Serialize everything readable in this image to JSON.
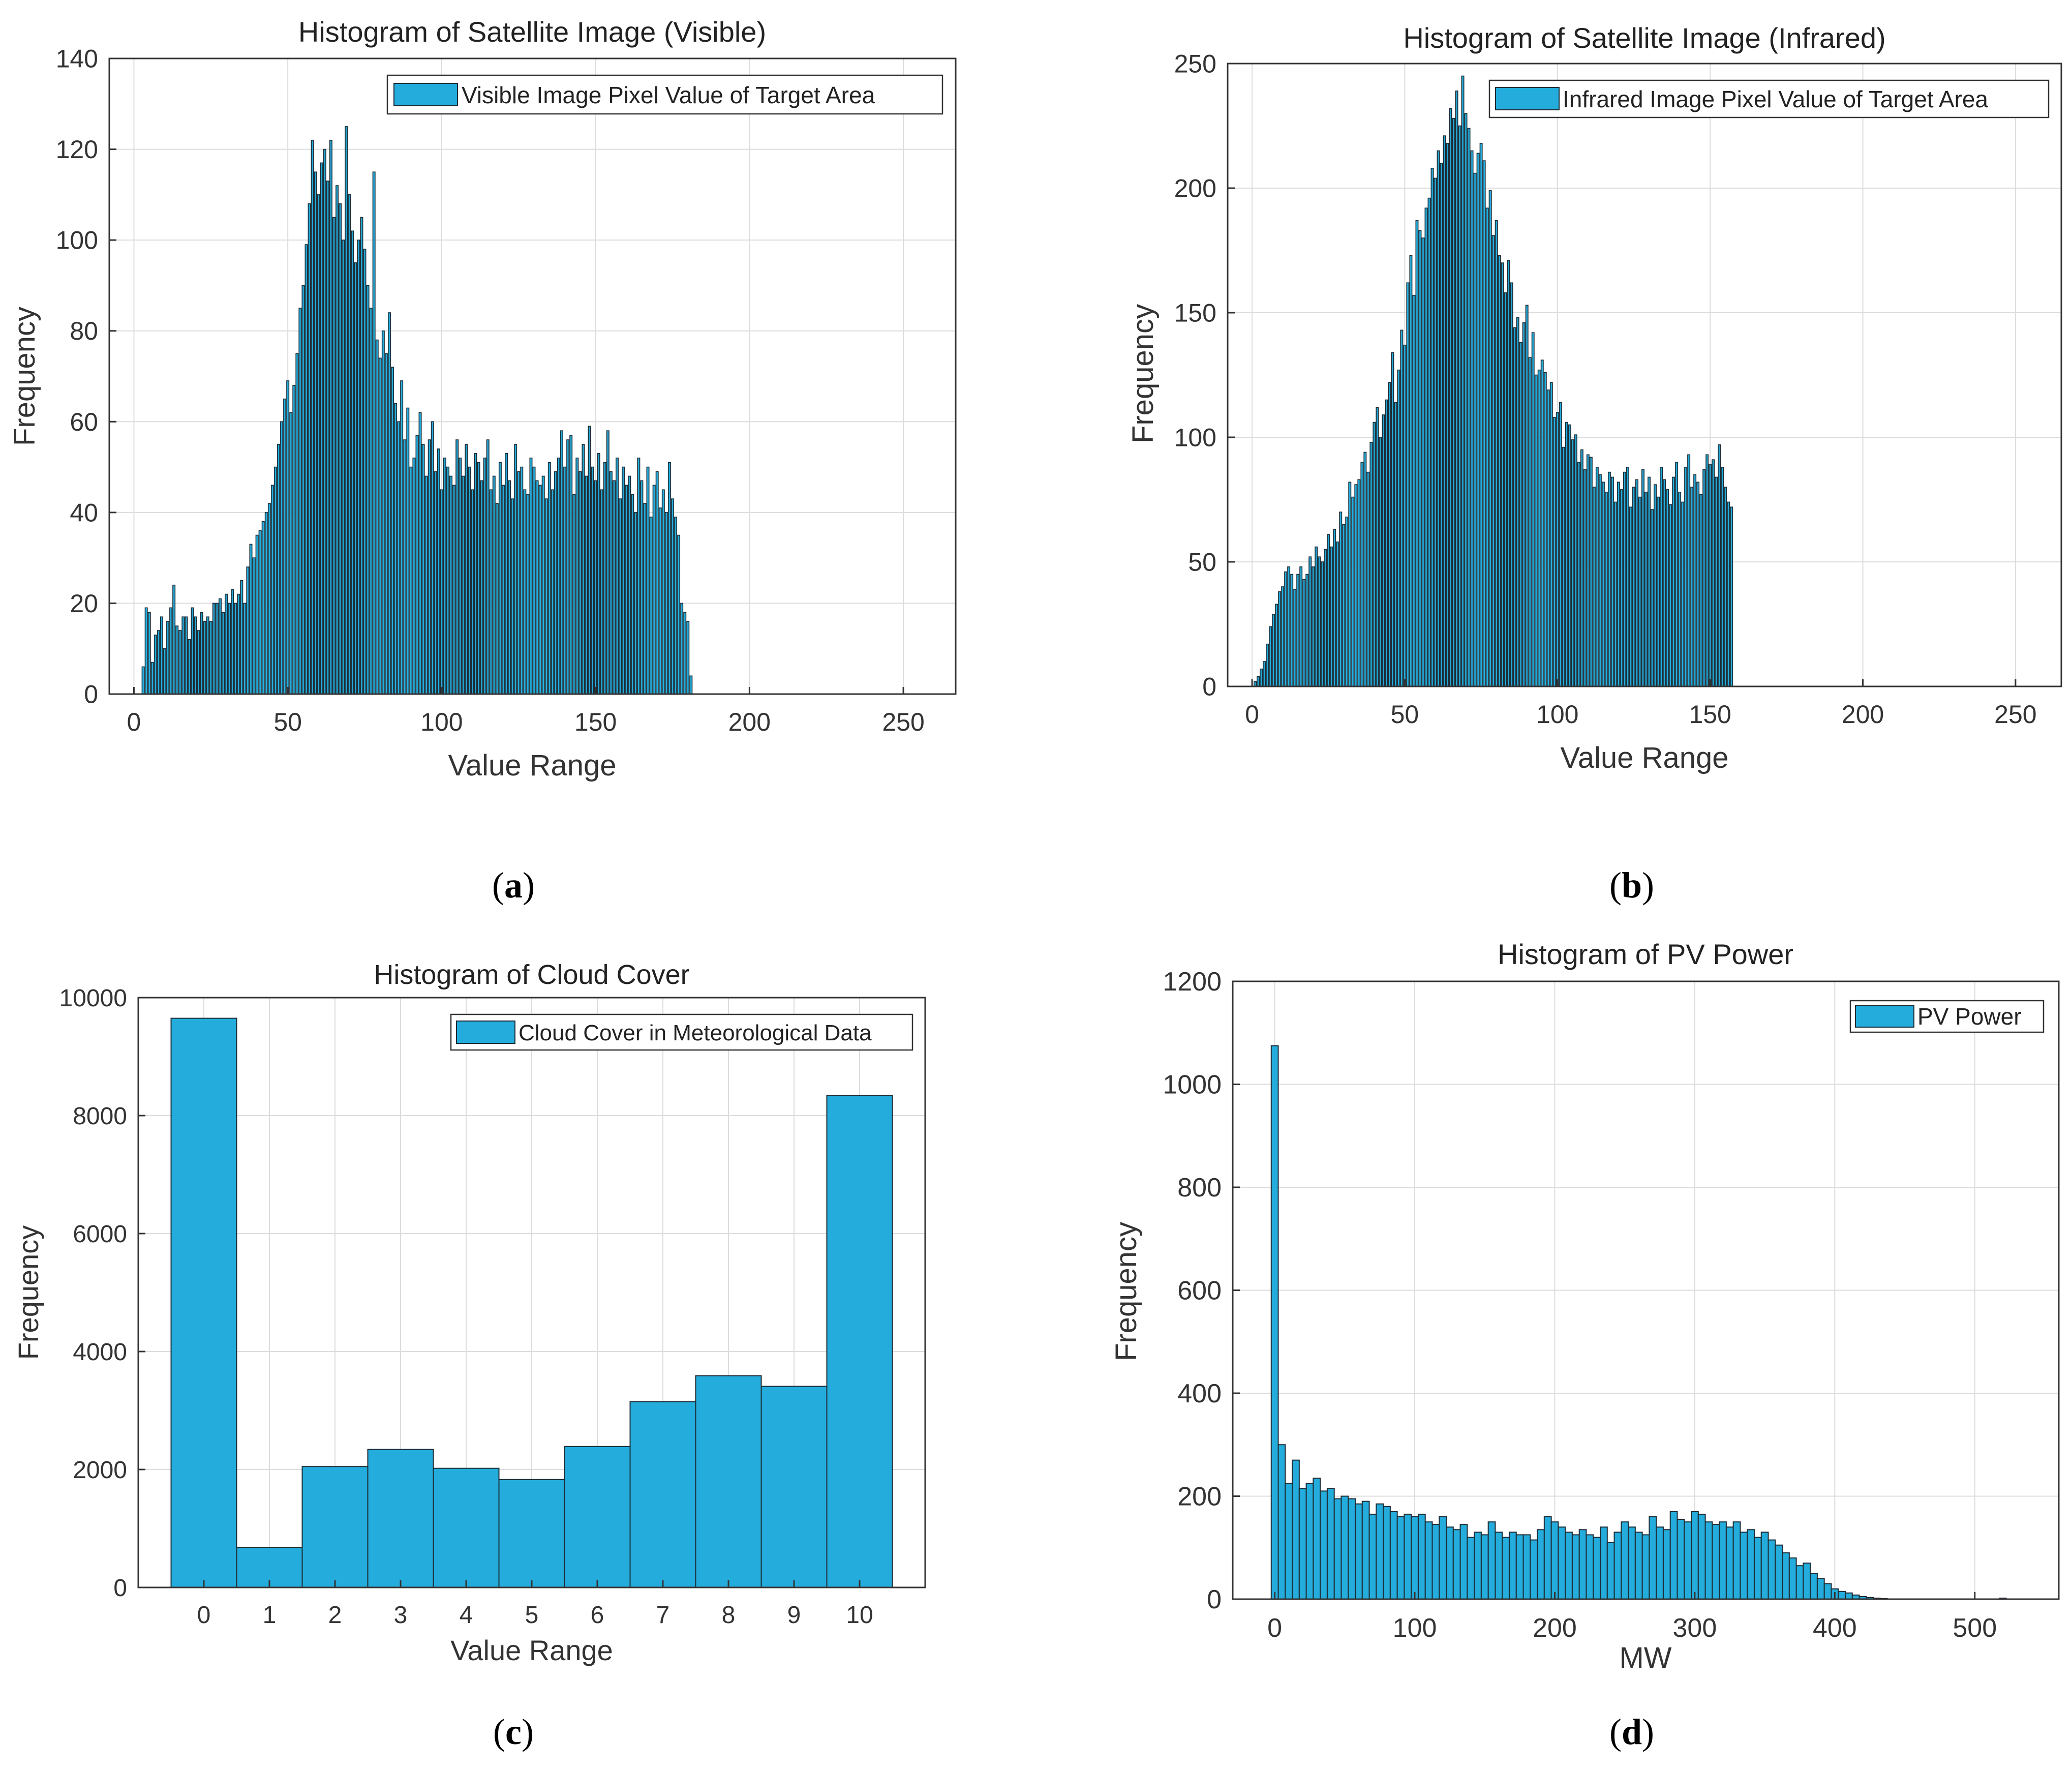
{
  "colors": {
    "bar": "#24ADDC",
    "edge": "#1d2a33",
    "grid": "#dcdcdc",
    "axis": "#333333",
    "text": "#333333"
  },
  "panels": {
    "a": {
      "label": "a"
    },
    "b": {
      "label": "b"
    },
    "c": {
      "label": "c"
    },
    "d": {
      "label": "d"
    }
  },
  "chart_data": [
    {
      "id": "a",
      "type": "bar",
      "title": "Histogram of Satellite Image (Visible)",
      "xlabel": "Value Range",
      "ylabel": "Frequency",
      "legend": "Visible Image Pixel Value of Target Area",
      "legend_position": "top-right",
      "xlim": [
        -8,
        267
      ],
      "ylim": [
        0,
        140
      ],
      "xticks": [
        0,
        50,
        100,
        150,
        200,
        250
      ],
      "yticks": [
        0,
        20,
        40,
        60,
        80,
        100,
        120,
        140
      ],
      "grid": true,
      "bin_width": 1,
      "x_start": 3,
      "values": [
        6,
        19,
        18,
        7,
        13,
        14,
        17,
        10,
        16,
        19,
        24,
        15,
        14,
        17,
        17,
        12,
        19,
        17,
        14,
        18,
        16,
        17,
        16,
        20,
        20,
        21,
        18,
        22,
        20,
        23,
        20,
        22,
        25,
        20,
        28,
        33,
        30,
        35,
        36,
        38,
        40,
        42,
        46,
        50,
        55,
        60,
        65,
        69,
        62,
        68,
        75,
        85,
        90,
        99,
        108,
        122,
        115,
        110,
        117,
        120,
        113,
        122,
        105,
        112,
        108,
        100,
        125,
        110,
        102,
        95,
        100,
        105,
        98,
        90,
        85,
        115,
        78,
        74,
        80,
        75,
        84,
        72,
        64,
        60,
        69,
        56,
        63,
        50,
        52,
        57,
        62,
        55,
        48,
        56,
        60,
        49,
        54,
        45,
        52,
        50,
        48,
        46,
        56,
        52,
        48,
        55,
        50,
        45,
        53,
        51,
        47,
        52,
        56,
        45,
        48,
        42,
        51,
        46,
        53,
        47,
        43,
        55,
        49,
        50,
        45,
        44,
        52,
        50,
        47,
        46,
        48,
        43,
        51,
        45,
        49,
        52,
        58,
        50,
        56,
        57,
        44,
        52,
        49,
        55,
        48,
        59,
        50,
        47,
        53,
        45,
        51,
        58,
        49,
        47,
        52,
        43,
        50,
        46,
        48,
        44,
        40,
        52,
        47,
        42,
        50,
        39,
        46,
        49,
        41,
        45,
        40,
        51,
        43,
        39,
        35,
        20,
        18,
        16,
        4
      ]
    },
    {
      "id": "b",
      "type": "bar",
      "title": "Histogram of Satellite Image (Infrared)",
      "xlabel": "Value Range",
      "ylabel": "Frequency",
      "legend": "Infrared Image Pixel Value of Target Area",
      "legend_position": "top-right",
      "xlim": [
        -8,
        265
      ],
      "ylim": [
        0,
        250
      ],
      "xticks": [
        0,
        50,
        100,
        150,
        200,
        250
      ],
      "yticks": [
        0,
        50,
        100,
        150,
        200,
        250
      ],
      "grid": true,
      "bin_width": 1,
      "x_start": 1,
      "values": [
        2,
        4,
        7,
        10,
        17,
        24,
        29,
        33,
        38,
        40,
        46,
        48,
        45,
        39,
        45,
        48,
        43,
        45,
        52,
        48,
        56,
        52,
        50,
        55,
        61,
        56,
        63,
        58,
        70,
        65,
        68,
        82,
        76,
        81,
        83,
        90,
        94,
        86,
        98,
        106,
        112,
        100,
        109,
        115,
        122,
        134,
        114,
        127,
        143,
        137,
        162,
        173,
        157,
        187,
        183,
        180,
        192,
        196,
        208,
        204,
        215,
        210,
        221,
        218,
        232,
        228,
        239,
        225,
        245,
        230,
        224,
        215,
        206,
        214,
        218,
        211,
        192,
        199,
        181,
        187,
        173,
        170,
        158,
        171,
        162,
        144,
        148,
        138,
        146,
        153,
        132,
        142,
        125,
        127,
        131,
        126,
        119,
        122,
        108,
        110,
        114,
        96,
        106,
        105,
        99,
        101,
        90,
        95,
        87,
        93,
        92,
        80,
        88,
        85,
        82,
        78,
        86,
        84,
        74,
        82,
        79,
        86,
        88,
        72,
        80,
        83,
        76,
        87,
        78,
        84,
        71,
        81,
        76,
        88,
        83,
        79,
        73,
        84,
        90,
        78,
        74,
        88,
        93,
        80,
        85,
        82,
        77,
        87,
        93,
        89,
        91,
        84,
        97,
        88,
        80,
        74,
        72
      ]
    },
    {
      "id": "c",
      "type": "bar",
      "title": "Histogram of Cloud Cover",
      "xlabel": "Value Range",
      "ylabel": "Frequency",
      "legend": "Cloud Cover in Meteorological Data",
      "legend_position": "top-right",
      "xlim": [
        -1,
        11
      ],
      "ylim": [
        0,
        10000
      ],
      "xticks": [
        0,
        1,
        2,
        3,
        4,
        5,
        6,
        7,
        8,
        9,
        10
      ],
      "yticks": [
        0,
        2000,
        4000,
        6000,
        8000,
        10000
      ],
      "grid": true,
      "categories": [
        "0",
        "1",
        "2",
        "3",
        "4",
        "5",
        "6",
        "7",
        "8",
        "9",
        "10"
      ],
      "values": [
        9650,
        680,
        2050,
        2340,
        2020,
        1830,
        2390,
        3150,
        3590,
        3410,
        8340
      ]
    },
    {
      "id": "d",
      "type": "bar",
      "title": "Histogram of PV Power",
      "xlabel": "MW",
      "ylabel": "Frequency",
      "legend": "PV Power",
      "legend_position": "top-right",
      "xlim": [
        -30,
        560
      ],
      "ylim": [
        0,
        1200
      ],
      "xticks": [
        0,
        100,
        200,
        300,
        400,
        500
      ],
      "yticks": [
        0,
        200,
        400,
        600,
        800,
        1000,
        1200
      ],
      "grid": true,
      "bin_width": 5,
      "x_start": 0,
      "values": [
        1075,
        300,
        225,
        270,
        215,
        225,
        235,
        210,
        215,
        195,
        200,
        195,
        185,
        190,
        165,
        185,
        180,
        170,
        160,
        165,
        160,
        165,
        150,
        145,
        160,
        140,
        135,
        145,
        120,
        130,
        125,
        150,
        130,
        120,
        130,
        125,
        125,
        115,
        135,
        160,
        150,
        140,
        130,
        125,
        135,
        125,
        120,
        140,
        110,
        130,
        150,
        140,
        130,
        125,
        160,
        140,
        135,
        170,
        155,
        150,
        170,
        165,
        150,
        145,
        150,
        140,
        150,
        130,
        135,
        120,
        130,
        115,
        105,
        90,
        80,
        65,
        70,
        50,
        40,
        30,
        20,
        15,
        12,
        8,
        5,
        3,
        2,
        1,
        0,
        0,
        0,
        0,
        0,
        0,
        0,
        0,
        0,
        0,
        0,
        0,
        0,
        0,
        0,
        0,
        2,
        0,
        0
      ]
    }
  ]
}
